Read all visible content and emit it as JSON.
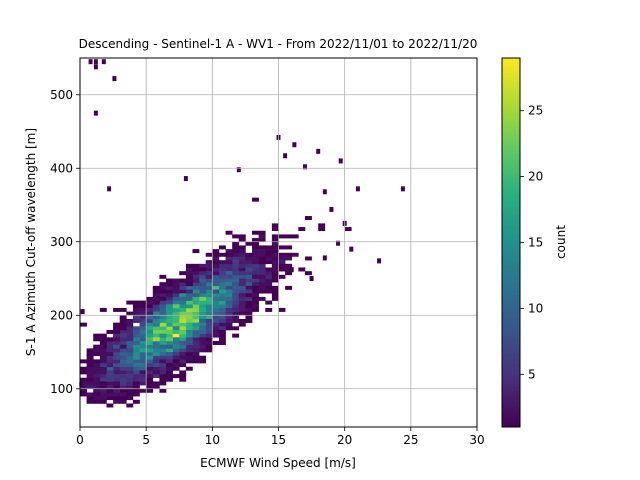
{
  "chart_data": {
    "type": "heatmap",
    "title": "Descending - Sentinel-1 A - WV1 - From 2022/11/01 to 2022/11/20",
    "xlabel": "ECMWF Wind Speed [m/s]",
    "ylabel": "S-1 A Azimuth Cut-off wavelength [m]",
    "xlim": [
      0,
      30
    ],
    "ylim": [
      48,
      550
    ],
    "xticks": [
      0,
      5,
      10,
      15,
      20,
      25,
      30
    ],
    "yticks": [
      100,
      200,
      300,
      400,
      500
    ],
    "grid": true,
    "bin_size": [
      0.5,
      5
    ],
    "colorbar": {
      "label": "count",
      "range": [
        1,
        29
      ],
      "ticks": [
        5,
        10,
        15,
        20,
        25
      ],
      "colormap": "viridis"
    },
    "density_core": {
      "x_mean": 7.5,
      "y_mean": 190,
      "peak_count": 29
    },
    "outliers": [
      {
        "x": 0.8,
        "y": 545
      },
      {
        "x": 1.2,
        "y": 545
      },
      {
        "x": 1.8,
        "y": 545
      },
      {
        "x": 1.2,
        "y": 538
      },
      {
        "x": 2.6,
        "y": 522
      },
      {
        "x": 1.2,
        "y": 475
      },
      {
        "x": 15.0,
        "y": 442
      },
      {
        "x": 16.2,
        "y": 432
      },
      {
        "x": 18.0,
        "y": 423
      },
      {
        "x": 15.5,
        "y": 417
      },
      {
        "x": 19.7,
        "y": 410
      },
      {
        "x": 17.0,
        "y": 402
      },
      {
        "x": 12.0,
        "y": 398
      },
      {
        "x": 8.0,
        "y": 386
      },
      {
        "x": 2.2,
        "y": 372
      },
      {
        "x": 21.0,
        "y": 372
      },
      {
        "x": 24.4,
        "y": 372
      },
      {
        "x": 18.5,
        "y": 368
      },
      {
        "x": 19.0,
        "y": 344
      },
      {
        "x": 20.0,
        "y": 325
      },
      {
        "x": 19.5,
        "y": 298
      },
      {
        "x": 20.5,
        "y": 290
      },
      {
        "x": 22.6,
        "y": 274
      },
      {
        "x": 18.5,
        "y": 278
      },
      {
        "x": 0.2,
        "y": 205
      },
      {
        "x": 0.1,
        "y": 106
      },
      {
        "x": 16.0,
        "y": 262
      },
      {
        "x": 17.5,
        "y": 250
      }
    ]
  }
}
